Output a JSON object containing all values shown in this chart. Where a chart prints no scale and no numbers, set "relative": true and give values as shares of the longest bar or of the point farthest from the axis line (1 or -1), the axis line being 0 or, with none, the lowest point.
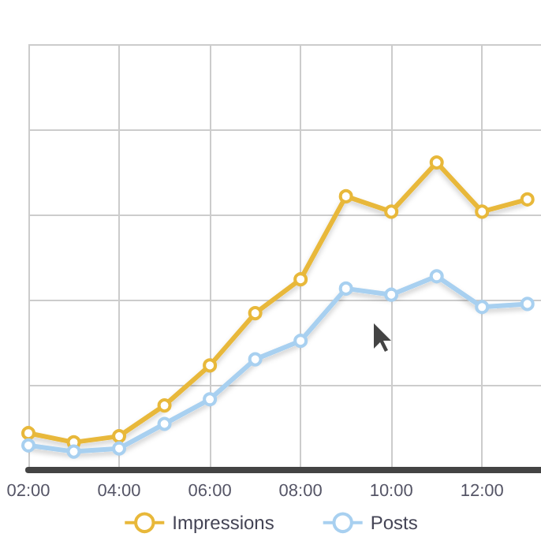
{
  "chart_data": {
    "type": "line",
    "relative": true,
    "x": [
      2,
      3,
      4,
      5,
      6,
      7,
      8,
      9,
      10,
      11,
      12,
      13
    ],
    "xlim": [
      2,
      13.3
    ],
    "xticks": [
      {
        "value": 2,
        "label": "02:00"
      },
      {
        "value": 4,
        "label": "04:00"
      },
      {
        "value": 6,
        "label": "06:00"
      },
      {
        "value": 8,
        "label": "08:00"
      },
      {
        "value": 10,
        "label": "10:00"
      },
      {
        "value": 12,
        "label": "12:00"
      }
    ],
    "series": [
      {
        "name": "Impressions",
        "color": "#e8b83a",
        "values": [
          0.12,
          0.09,
          0.11,
          0.21,
          0.34,
          0.51,
          0.62,
          0.89,
          0.84,
          1,
          0.84,
          0.88
        ]
      },
      {
        "name": "Posts",
        "color": "#a8d0f0",
        "values": [
          0.08,
          0.06,
          0.07,
          0.15,
          0.23,
          0.36,
          0.42,
          0.59,
          0.57,
          0.63,
          0.53,
          0.54
        ]
      }
    ],
    "grid": true,
    "legend": "bottom",
    "marker": "circle",
    "line_style": "solid"
  }
}
